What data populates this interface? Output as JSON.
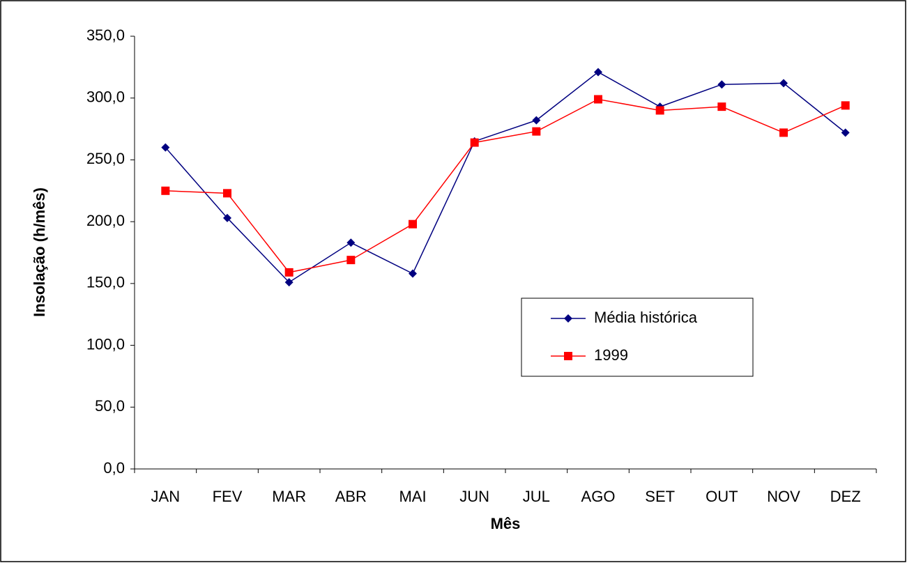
{
  "chart_data": {
    "type": "line",
    "y_label": "Insolação (h/mês)",
    "x_label": "Mês",
    "categories": [
      "JAN",
      "FEV",
      "MAR",
      "ABR",
      "MAI",
      "JUN",
      "JUL",
      "AGO",
      "SET",
      "OUT",
      "NOV",
      "DEZ"
    ],
    "series": [
      {
        "name": "Média histórica",
        "color": "#000080",
        "marker": "diamond",
        "values": [
          260,
          203,
          151,
          183,
          158,
          265,
          282,
          321,
          293,
          311,
          312,
          272
        ]
      },
      {
        "name": "1999",
        "color": "#ff0000",
        "marker": "square",
        "values": [
          225,
          223,
          159,
          169,
          198,
          264,
          273,
          299,
          290,
          293,
          272,
          294
        ]
      }
    ],
    "ylim": [
      0,
      350
    ],
    "yticks": [
      {
        "value": 0,
        "label": "0,0"
      },
      {
        "value": 50,
        "label": "50,0"
      },
      {
        "value": 100,
        "label": "100,0"
      },
      {
        "value": 150,
        "label": "150,0"
      },
      {
        "value": 200,
        "label": "200,0"
      },
      {
        "value": 250,
        "label": "250,0"
      },
      {
        "value": 300,
        "label": "300,0"
      },
      {
        "value": 350,
        "label": "350,0"
      }
    ],
    "grid": false
  }
}
